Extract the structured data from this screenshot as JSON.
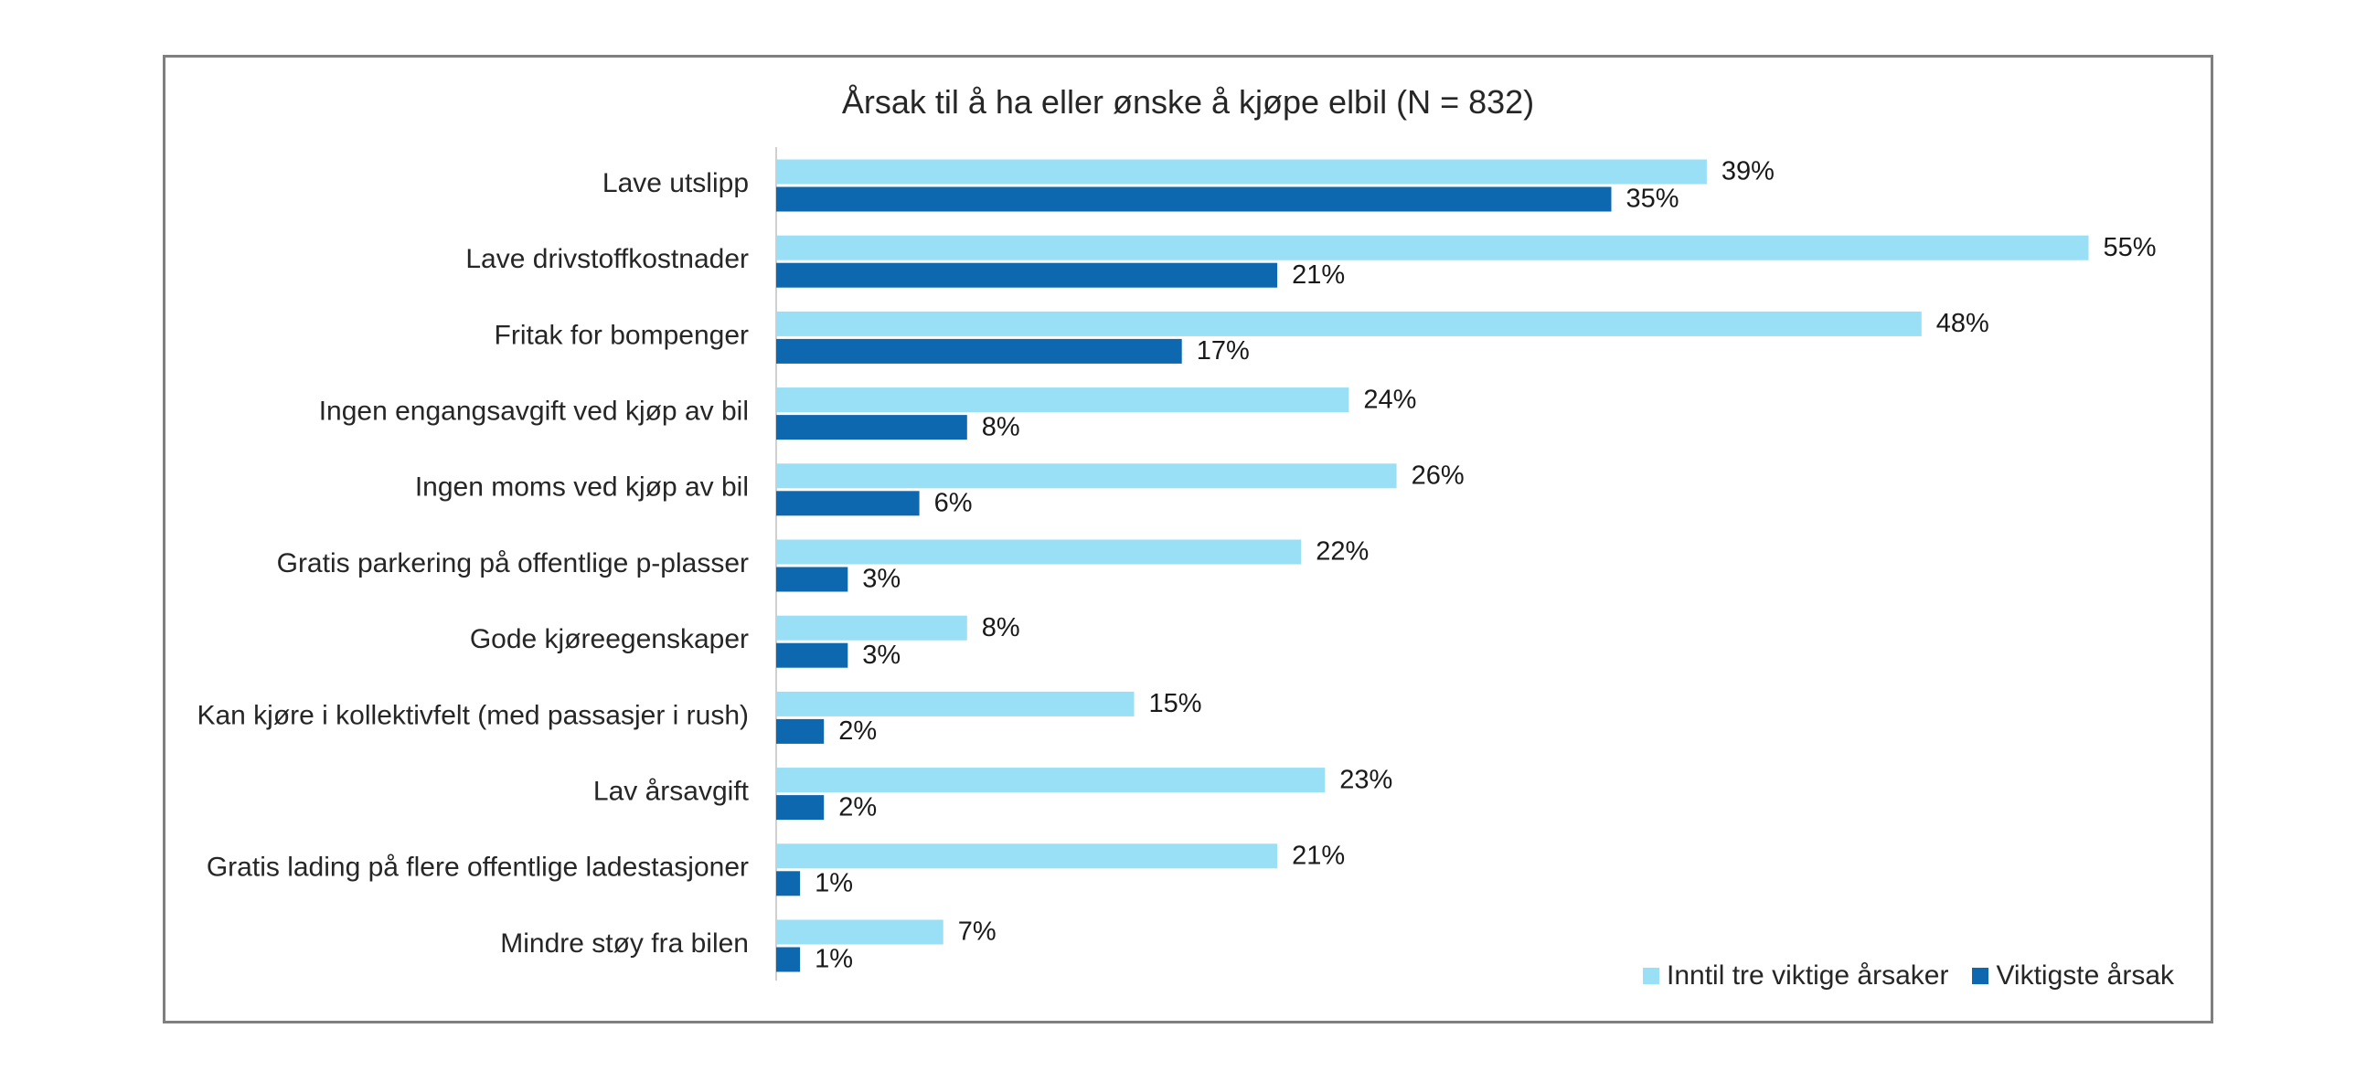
{
  "chart_data": {
    "type": "bar",
    "orientation": "horizontal",
    "title": "Årsak til å ha eller ønske å kjøpe elbil (N = 832)",
    "categories": [
      "Lave utslipp",
      "Lave drivstoffkostnader",
      "Fritak for bompenger",
      "Ingen engangsavgift ved kjøp av bil",
      "Ingen moms ved kjøp av bil",
      "Gratis parkering på offentlige p-plasser",
      "Gode kjøreegenskaper",
      "Kan kjøre i kollektivfelt (med passasjer i rush)",
      "Lav årsavgift",
      "Gratis lading på flere offentlige ladestasjoner",
      "Mindre støy fra bilen"
    ],
    "series": [
      {
        "name": "Inntil tre viktige årsaker",
        "color": "#99dff5",
        "values": [
          39,
          55,
          48,
          24,
          26,
          22,
          8,
          15,
          23,
          21,
          7
        ]
      },
      {
        "name": "Viktigste årsak",
        "color": "#0e68b0",
        "values": [
          35,
          21,
          17,
          8,
          6,
          3,
          3,
          2,
          2,
          1,
          1
        ]
      }
    ],
    "value_suffix": "%",
    "xlim": [
      0,
      60
    ],
    "grid": false,
    "legend_position": "bottom-right"
  }
}
